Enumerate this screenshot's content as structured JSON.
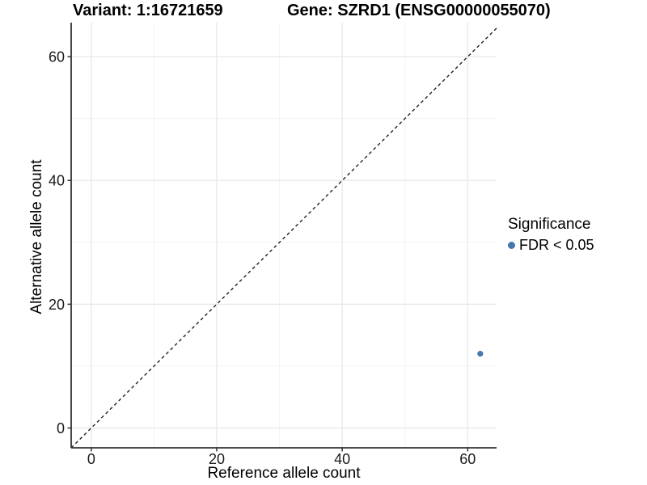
{
  "chart_data": {
    "type": "scatter",
    "titles": {
      "left": "Variant: 1:16721659",
      "right": "Gene: SZRD1 (ENSG00000055070)"
    },
    "xlabel": "Reference allele count",
    "ylabel": "Alternative allele count",
    "xlim": [
      -3.2,
      64.6
    ],
    "ylim": [
      -3.2,
      65.5
    ],
    "xticks": [
      0,
      20,
      40,
      60
    ],
    "yticks": [
      0,
      20,
      40,
      60
    ],
    "minor_xticks": [
      10,
      30,
      50
    ],
    "minor_yticks": [
      10,
      30,
      50
    ],
    "grid": "on",
    "identity_line": {
      "type": "y=x",
      "style": "dashed",
      "color": "#222222"
    },
    "points": [
      {
        "x": 62,
        "y": 12,
        "series": "FDR < 0.05"
      }
    ],
    "point_color": "#4677ad",
    "legend": {
      "position": "right",
      "title": "Significance",
      "items": [
        {
          "label": "FDR < 0.05",
          "color": "#4677ad"
        }
      ]
    },
    "colors": {
      "major_grid": "#e7e7e7",
      "minor_grid": "#f3f3f3",
      "axis": "#333333",
      "tick_text": "#1a1a1a"
    }
  }
}
